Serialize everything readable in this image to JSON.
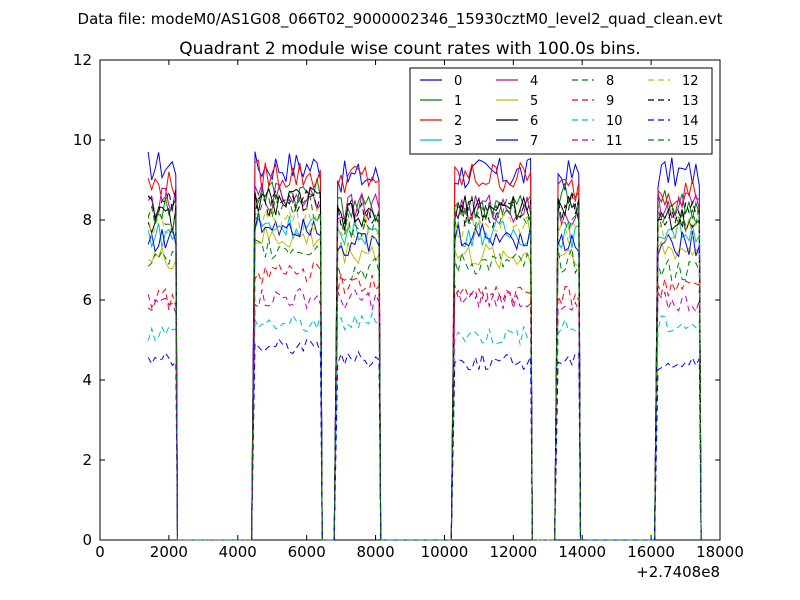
{
  "chart_data": {
    "type": "line",
    "suptitle": "Data file: modeM0/AS1G08_066T02_9000002346_15930cztM0_level2_quad_clean.evt",
    "title": "Quadrant 2 module wise count rates with 100.0s bins.",
    "xlabel": "",
    "ylabel": "",
    "x_offset_label": "+2.7408e8",
    "xlim": [
      0,
      18000
    ],
    "ylim": [
      0,
      12
    ],
    "xticks": [
      0,
      2000,
      4000,
      6000,
      8000,
      10000,
      12000,
      14000,
      16000,
      18000
    ],
    "yticks": [
      0,
      2,
      4,
      6,
      8,
      10,
      12
    ],
    "grid": false,
    "legend_position": "top-right",
    "segments": [
      [
        1400,
        2200
      ],
      [
        4500,
        6400
      ],
      [
        6900,
        8100
      ],
      [
        10300,
        12500
      ],
      [
        13300,
        13900
      ],
      [
        16200,
        17400
      ]
    ],
    "series": [
      {
        "name": "0",
        "color": "#0000ff",
        "dash": "solid",
        "level": 9.2
      },
      {
        "name": "1",
        "color": "#007f00",
        "dash": "solid",
        "level": 8.5
      },
      {
        "name": "2",
        "color": "#ff0000",
        "dash": "solid",
        "level": 8.9
      },
      {
        "name": "3",
        "color": "#00bfbf",
        "dash": "solid",
        "level": 7.6
      },
      {
        "name": "4",
        "color": "#bf00bf",
        "dash": "solid",
        "level": 8.3
      },
      {
        "name": "5",
        "color": "#bfbf00",
        "dash": "solid",
        "level": 7.2
      },
      {
        "name": "6",
        "color": "#000000",
        "dash": "solid",
        "level": 8.1
      },
      {
        "name": "7",
        "color": "#0000ff",
        "dash": "solid",
        "level": 7.5
      },
      {
        "name": "8",
        "color": "#007f00",
        "dash": "dashed",
        "level": 6.9
      },
      {
        "name": "9",
        "color": "#ff0000",
        "dash": "dashed",
        "level": 6.2
      },
      {
        "name": "10",
        "color": "#00bfbf",
        "dash": "dashed",
        "level": 5.3
      },
      {
        "name": "11",
        "color": "#bf00bf",
        "dash": "dashed",
        "level": 5.9
      },
      {
        "name": "12",
        "color": "#bfbf00",
        "dash": "dashed",
        "level": 7.8
      },
      {
        "name": "13",
        "color": "#000000",
        "dash": "dashed",
        "level": 8.2
      },
      {
        "name": "14",
        "color": "#0000ff",
        "dash": "dashed",
        "level": 4.6
      },
      {
        "name": "15",
        "color": "#007f00",
        "dash": "dashed",
        "level": 8.0
      }
    ]
  }
}
